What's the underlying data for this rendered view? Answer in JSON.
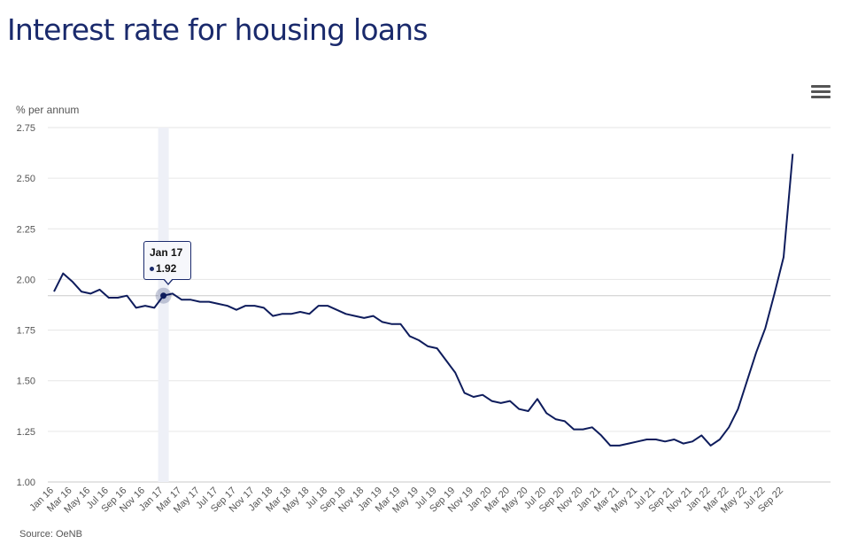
{
  "title": "Interest rate for housing loans",
  "source": "Source: OeNB",
  "menu_icon": "hamburger-menu-icon",
  "colors": {
    "line": "#0e1c5c",
    "title": "#1a2a6c",
    "grid": "#e6e6e6",
    "highlight": "#eef0f7"
  },
  "tooltip": {
    "title": "Jan 17",
    "value": "1.92"
  },
  "chart_data": {
    "type": "line",
    "ylabel": "% per annum",
    "xlabel": "",
    "ylim": [
      1.0,
      2.75
    ],
    "yticks": [
      "1.00",
      "1.25",
      "1.50",
      "1.75",
      "2.00",
      "2.25",
      "2.50",
      "2.75"
    ],
    "xtick_labels": [
      "Jan 16",
      "Mar 16",
      "May 16",
      "Jul 16",
      "Sep 16",
      "Nov 16",
      "Jan 17",
      "Mar 17",
      "May 17",
      "Jul 17",
      "Sep 17",
      "Nov 17",
      "Jan 18",
      "Mar 18",
      "May 18",
      "Jul 18",
      "Sep 18",
      "Nov 18",
      "Jan 19",
      "Mar 19",
      "May 19",
      "Jul 19",
      "Sep 19",
      "Nov 19",
      "Jan 20",
      "Mar 20",
      "May 20",
      "Jul 20",
      "Sep 20",
      "Nov 20",
      "Jan 21",
      "Mar 21",
      "May 21",
      "Jul 21",
      "Sep 21",
      "Nov 21",
      "Jan 22",
      "Mar 22",
      "May 22",
      "Jul 22",
      "Sep 22"
    ],
    "x_start": "Jan 16",
    "x_end": "Nov 22",
    "highlighted_point": {
      "x": "Jan 17",
      "y": 1.92
    },
    "grid": true,
    "legend": "none",
    "series": [
      {
        "values": [
          1.94,
          2.03,
          1.99,
          1.94,
          1.93,
          1.95,
          1.91,
          1.91,
          1.92,
          1.86,
          1.87,
          1.86,
          1.92,
          1.93,
          1.9,
          1.9,
          1.89,
          1.89,
          1.88,
          1.87,
          1.85,
          1.87,
          1.87,
          1.86,
          1.82,
          1.83,
          1.83,
          1.84,
          1.83,
          1.87,
          1.87,
          1.85,
          1.83,
          1.82,
          1.81,
          1.82,
          1.79,
          1.78,
          1.78,
          1.72,
          1.7,
          1.67,
          1.66,
          1.6,
          1.54,
          1.44,
          1.42,
          1.43,
          1.4,
          1.39,
          1.4,
          1.36,
          1.35,
          1.41,
          1.34,
          1.31,
          1.3,
          1.26,
          1.26,
          1.27,
          1.23,
          1.18,
          1.18,
          1.19,
          1.2,
          1.21,
          1.21,
          1.2,
          1.21,
          1.19,
          1.2,
          1.23,
          1.18,
          1.21,
          1.27,
          1.36,
          1.5,
          1.64,
          1.76,
          1.93,
          2.11,
          2.62
        ]
      }
    ]
  }
}
